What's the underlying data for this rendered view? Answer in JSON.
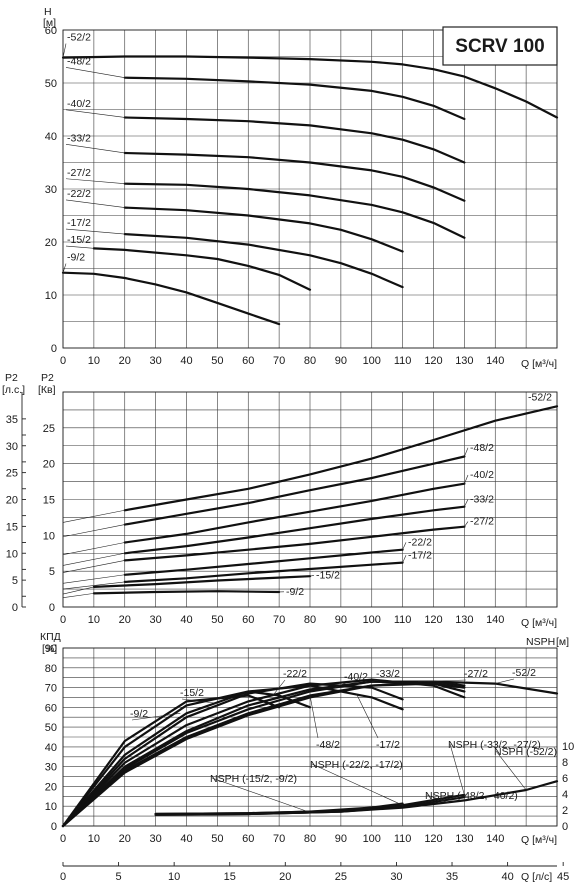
{
  "title": "SCRV 100",
  "chart_data": [
    {
      "type": "line",
      "ylabel": "H",
      "yunit": "[м]",
      "xlabel": "Q [м³/ч]",
      "xlim": [
        0,
        160
      ],
      "ylim": [
        0,
        60
      ],
      "xticks": [
        0,
        10,
        20,
        30,
        40,
        50,
        60,
        70,
        80,
        90,
        100,
        110,
        120,
        130,
        140
      ],
      "yticks": [
        0,
        10,
        20,
        30,
        40,
        50,
        60
      ],
      "series": [
        {
          "name": "-52/2",
          "points": [
            [
              0,
              54.8
            ],
            [
              20,
              55
            ],
            [
              40,
              55
            ],
            [
              60,
              54.8
            ],
            [
              80,
              54.5
            ],
            [
              100,
              54
            ],
            [
              110,
              53.5
            ],
            [
              120,
              52.6
            ],
            [
              130,
              51.2
            ],
            [
              140,
              49
            ],
            [
              150,
              46.5
            ],
            [
              160,
              43.5
            ]
          ]
        },
        {
          "name": "-48/2",
          "points": [
            [
              20,
              51
            ],
            [
              40,
              50.8
            ],
            [
              60,
              50.3
            ],
            [
              80,
              49.7
            ],
            [
              100,
              48.5
            ],
            [
              110,
              47.4
            ],
            [
              120,
              45.7
            ],
            [
              130,
              43.2
            ]
          ]
        },
        {
          "name": "-40/2",
          "points": [
            [
              20,
              43.5
            ],
            [
              40,
              43.2
            ],
            [
              60,
              42.8
            ],
            [
              80,
              42
            ],
            [
              100,
              40.5
            ],
            [
              110,
              39.3
            ],
            [
              120,
              37.5
            ],
            [
              130,
              35
            ]
          ]
        },
        {
          "name": "-33/2",
          "points": [
            [
              20,
              36.8
            ],
            [
              40,
              36.5
            ],
            [
              60,
              36
            ],
            [
              80,
              35
            ],
            [
              100,
              33.5
            ],
            [
              110,
              32.3
            ],
            [
              120,
              30.3
            ],
            [
              130,
              27.8
            ]
          ]
        },
        {
          "name": "-27/2",
          "points": [
            [
              20,
              31
            ],
            [
              40,
              30.8
            ],
            [
              60,
              30
            ],
            [
              80,
              28.8
            ],
            [
              100,
              27
            ],
            [
              110,
              25.6
            ],
            [
              120,
              23.6
            ],
            [
              130,
              20.8
            ]
          ]
        },
        {
          "name": "-22/2",
          "points": [
            [
              20,
              26.5
            ],
            [
              40,
              26
            ],
            [
              60,
              25
            ],
            [
              80,
              23.5
            ],
            [
              90,
              22.3
            ],
            [
              100,
              20.5
            ],
            [
              110,
              18.2
            ]
          ]
        },
        {
          "name": "-17/2",
          "points": [
            [
              20,
              21.5
            ],
            [
              40,
              20.8
            ],
            [
              60,
              19.5
            ],
            [
              80,
              17.5
            ],
            [
              90,
              16
            ],
            [
              100,
              14
            ],
            [
              110,
              11.5
            ]
          ]
        },
        {
          "name": "-15/2",
          "points": [
            [
              10,
              18.8
            ],
            [
              20,
              18.5
            ],
            [
              40,
              17.5
            ],
            [
              50,
              16.8
            ],
            [
              60,
              15.5
            ],
            [
              70,
              13.8
            ],
            [
              80,
              11
            ]
          ]
        },
        {
          "name": "-9/2",
          "points": [
            [
              0,
              14.2
            ],
            [
              10,
              14
            ],
            [
              20,
              13.2
            ],
            [
              30,
              12
            ],
            [
              40,
              10.5
            ],
            [
              50,
              8.5
            ],
            [
              60,
              6.5
            ],
            [
              70,
              4.5
            ]
          ]
        }
      ]
    },
    {
      "type": "line",
      "ylabel": "P2",
      "yunit": "[Кв]",
      "secondary_ylabel": "P2",
      "secondary_yunit": "[л.с.]",
      "xlabel": "Q [м³/ч]",
      "xlim": [
        0,
        160
      ],
      "ylim": [
        0,
        30
      ],
      "xticks": [
        0,
        10,
        20,
        30,
        40,
        50,
        60,
        70,
        80,
        90,
        100,
        110,
        120,
        130,
        140
      ],
      "yticks": [
        0,
        5,
        10,
        15,
        20,
        25
      ],
      "secondary_yticks": [
        0,
        2,
        5,
        7,
        10,
        12,
        15,
        17,
        20,
        22,
        25,
        27,
        30,
        32,
        35
      ],
      "series": [
        {
          "name": "-52/2",
          "points": [
            [
              20,
              13.5
            ],
            [
              40,
              15
            ],
            [
              60,
              16.5
            ],
            [
              80,
              18.5
            ],
            [
              100,
              20.7
            ],
            [
              120,
              23.3
            ],
            [
              140,
              26
            ],
            [
              160,
              28
            ]
          ]
        },
        {
          "name": "-48/2",
          "points": [
            [
              20,
              11.5
            ],
            [
              40,
              13
            ],
            [
              60,
              14.5
            ],
            [
              80,
              16.3
            ],
            [
              100,
              18
            ],
            [
              120,
              20
            ],
            [
              130,
              21
            ]
          ]
        },
        {
          "name": "-40/2",
          "points": [
            [
              20,
              9
            ],
            [
              40,
              10.2
            ],
            [
              60,
              11.8
            ],
            [
              80,
              13.3
            ],
            [
              100,
              14.8
            ],
            [
              120,
              16.5
            ],
            [
              130,
              17.2
            ]
          ]
        },
        {
          "name": "-33/2",
          "points": [
            [
              20,
              7.5
            ],
            [
              40,
              8.5
            ],
            [
              60,
              9.7
            ],
            [
              80,
              11
            ],
            [
              100,
              12.3
            ],
            [
              120,
              13.5
            ],
            [
              130,
              14
            ]
          ]
        },
        {
          "name": "-27/2",
          "points": [
            [
              20,
              6.5
            ],
            [
              40,
              7.2
            ],
            [
              60,
              8
            ],
            [
              80,
              8.8
            ],
            [
              100,
              9.8
            ],
            [
              120,
              10.8
            ],
            [
              130,
              11.2
            ]
          ]
        },
        {
          "name": "-22/2",
          "points": [
            [
              20,
              4.5
            ],
            [
              40,
              5.2
            ],
            [
              60,
              6
            ],
            [
              80,
              6.8
            ],
            [
              100,
              7.6
            ],
            [
              110,
              8
            ]
          ]
        },
        {
          "name": "-17/2",
          "points": [
            [
              20,
              3.5
            ],
            [
              40,
              4
            ],
            [
              60,
              4.7
            ],
            [
              80,
              5.3
            ],
            [
              100,
              5.9
            ],
            [
              110,
              6.2
            ]
          ]
        },
        {
          "name": "-15/2",
          "points": [
            [
              10,
              2.8
            ],
            [
              30,
              3.2
            ],
            [
              50,
              3.7
            ],
            [
              70,
              4.1
            ],
            [
              80,
              4.3
            ]
          ]
        },
        {
          "name": "-9/2",
          "points": [
            [
              10,
              1.9
            ],
            [
              30,
              2.1
            ],
            [
              50,
              2.2
            ],
            [
              70,
              2.1
            ]
          ]
        }
      ]
    },
    {
      "type": "line",
      "ylabel": "КПД",
      "yunit": "[%]",
      "secondary_ylabel": "NSPH",
      "secondary_yunit": "[м]",
      "xlabel": "Q [м³/ч]",
      "x2label": "Q [л/с]",
      "xlim": [
        0,
        160
      ],
      "ylim": [
        0,
        90
      ],
      "secondary_ylim": [
        0,
        10
      ],
      "xticks": [
        0,
        10,
        20,
        30,
        40,
        50,
        60,
        70,
        80,
        90,
        100,
        110,
        120,
        130,
        140
      ],
      "x2ticks": [
        0,
        5,
        10,
        15,
        20,
        25,
        30,
        35,
        40,
        45
      ],
      "yticks": [
        0,
        10,
        20,
        30,
        40,
        50,
        60,
        70,
        80,
        90
      ],
      "secondary_yticks": [
        0,
        2,
        4,
        6,
        8,
        10
      ],
      "efficiency_series": [
        {
          "name": "-52/2",
          "points": [
            [
              0,
              0
            ],
            [
              20,
              28
            ],
            [
              40,
              45
            ],
            [
              60,
              57
            ],
            [
              80,
              66
            ],
            [
              100,
              71
            ],
            [
              120,
              73
            ],
            [
              140,
              72
            ],
            [
              160,
              67
            ]
          ]
        },
        {
          "name": "-48/2",
          "points": [
            [
              0,
              0
            ],
            [
              20,
              27
            ],
            [
              40,
              44
            ],
            [
              60,
              56
            ],
            [
              80,
              65
            ],
            [
              100,
              71
            ],
            [
              120,
              72
            ],
            [
              130,
              70
            ]
          ]
        },
        {
          "name": "-40/2",
          "points": [
            [
              0,
              0
            ],
            [
              20,
              29
            ],
            [
              40,
              47
            ],
            [
              60,
              59
            ],
            [
              80,
              68
            ],
            [
              100,
              73
            ],
            [
              120,
              73
            ],
            [
              130,
              71
            ]
          ]
        },
        {
          "name": "-33/2",
          "points": [
            [
              0,
              0
            ],
            [
              20,
              30
            ],
            [
              40,
              48
            ],
            [
              60,
              61
            ],
            [
              80,
              69
            ],
            [
              100,
              73
            ],
            [
              120,
              72
            ],
            [
              130,
              68
            ]
          ]
        },
        {
          "name": "-27/2",
          "points": [
            [
              0,
              0
            ],
            [
              20,
              32
            ],
            [
              40,
              51
            ],
            [
              60,
              63
            ],
            [
              80,
              71
            ],
            [
              100,
              74
            ],
            [
              120,
              71
            ],
            [
              130,
              65
            ]
          ]
        },
        {
          "name": "-22/2",
          "points": [
            [
              0,
              0
            ],
            [
              20,
              34
            ],
            [
              40,
              55
            ],
            [
              60,
              67
            ],
            [
              80,
              72
            ],
            [
              100,
              70
            ],
            [
              110,
              64
            ]
          ]
        },
        {
          "name": "-17/2",
          "points": [
            [
              0,
              0
            ],
            [
              20,
              36
            ],
            [
              40,
              57
            ],
            [
              60,
              68
            ],
            [
              80,
              71
            ],
            [
              100,
              65
            ],
            [
              110,
              59
            ]
          ]
        },
        {
          "name": "-15/2",
          "points": [
            [
              0,
              0
            ],
            [
              20,
              40
            ],
            [
              40,
              61
            ],
            [
              60,
              68
            ],
            [
              70,
              66
            ],
            [
              80,
              60
            ]
          ]
        },
        {
          "name": "-9/2",
          "points": [
            [
              0,
              0
            ],
            [
              20,
              43
            ],
            [
              40,
              63
            ],
            [
              60,
              66
            ],
            [
              70,
              60
            ]
          ]
        }
      ],
      "nsph_series": [
        {
          "name": "NSPH (-52/2)",
          "points": [
            [
              30,
              1.4
            ],
            [
              60,
              1.5
            ],
            [
              90,
              1.8
            ],
            [
              110,
              2.3
            ],
            [
              130,
              3.2
            ],
            [
              150,
              4.5
            ],
            [
              160,
              5.6
            ]
          ]
        },
        {
          "name": "NSPH (-48/2, -40/2)",
          "points": [
            [
              30,
              1.4
            ],
            [
              60,
              1.5
            ],
            [
              90,
              1.8
            ],
            [
              110,
              2.4
            ],
            [
              130,
              3.6
            ]
          ]
        },
        {
          "name": "NSPH (-33/2, -27/2)",
          "points": [
            [
              30,
              1.5
            ],
            [
              60,
              1.6
            ],
            [
              90,
              1.9
            ],
            [
              110,
              2.6
            ],
            [
              130,
              3.9
            ]
          ]
        },
        {
          "name": "NSPH (-22/2, -17/2)",
          "points": [
            [
              30,
              1.5
            ],
            [
              60,
              1.6
            ],
            [
              80,
              1.8
            ],
            [
              100,
              2.3
            ],
            [
              110,
              2.8
            ]
          ]
        },
        {
          "name": "NSPH (-15/2, -9/2)",
          "points": [
            [
              30,
              1.5
            ],
            [
              50,
              1.5
            ],
            [
              70,
              1.6
            ],
            [
              80,
              1.7
            ]
          ]
        }
      ]
    }
  ]
}
